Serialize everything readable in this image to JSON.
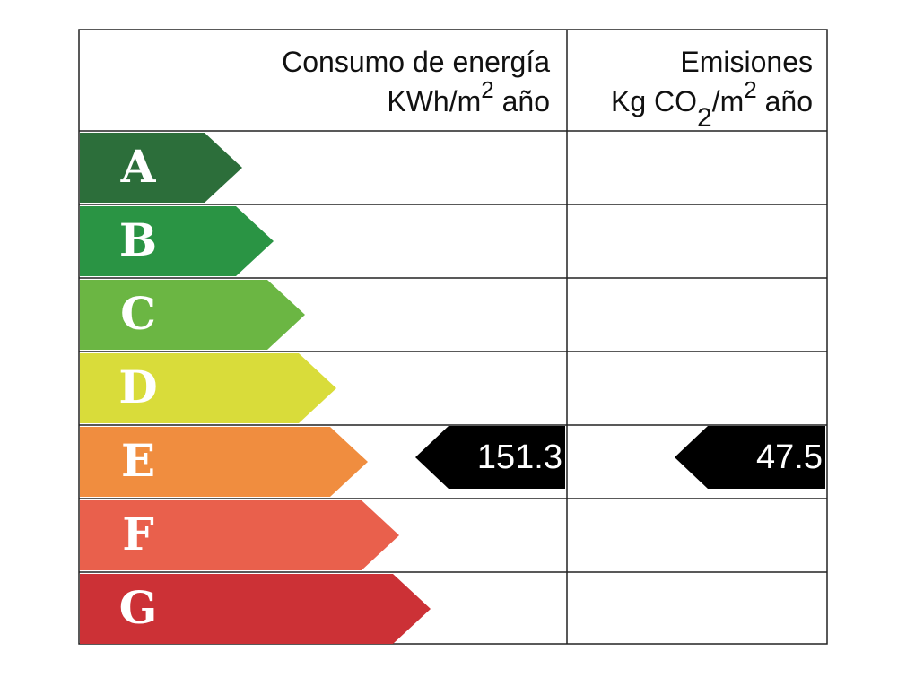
{
  "header": {
    "energy": {
      "title": "Consumo de energía",
      "unit": "KWh/m",
      "unit_sup": "2",
      "unit_tail": " año"
    },
    "emissions": {
      "title": "Emisiones",
      "unit": "Kg CO",
      "unit_sub": "2",
      "unit_mid": "/m",
      "unit_sup": "2",
      "unit_tail": " año"
    }
  },
  "rows": [
    {
      "letter": "A",
      "color": "#2c6e3a"
    },
    {
      "letter": "B",
      "color": "#2a9444"
    },
    {
      "letter": "C",
      "color": "#6bb643"
    },
    {
      "letter": "D",
      "color": "#d9dc3a"
    },
    {
      "letter": "E",
      "color": "#f08d3f",
      "energy": "151.3",
      "emissions": "47.5"
    },
    {
      "letter": "F",
      "color": "#e9604c"
    },
    {
      "letter": "G",
      "color": "#cc3136"
    }
  ]
}
